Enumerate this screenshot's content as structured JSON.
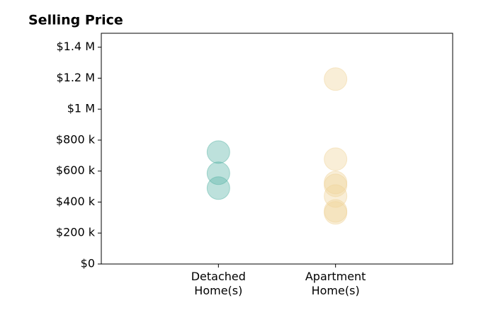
{
  "chart_data": {
    "type": "strip",
    "title": "Selling Price",
    "categories": [
      "Detached\nHome(s)",
      "Apartment\nHome(s)"
    ],
    "colors": [
      "#5bb5a8",
      "#f0d49a"
    ],
    "values": [
      [
        723000,
        586000,
        490000
      ],
      [
        1194000,
        677000,
        526000,
        508000,
        439000,
        343000,
        330000
      ]
    ],
    "ylim": [
      0,
      1490000
    ],
    "yticks": [
      {
        "value": 0,
        "label": "$0"
      },
      {
        "value": 200000,
        "label": "$200 k"
      },
      {
        "value": 400000,
        "label": "$400 k"
      },
      {
        "value": 600000,
        "label": "$600 k"
      },
      {
        "value": 800000,
        "label": "$800 k"
      },
      {
        "value": 1000000,
        "label": "$1 M"
      },
      {
        "value": 1200000,
        "label": "$1.2 M"
      },
      {
        "value": 1400000,
        "label": "$1.4 M"
      }
    ]
  }
}
